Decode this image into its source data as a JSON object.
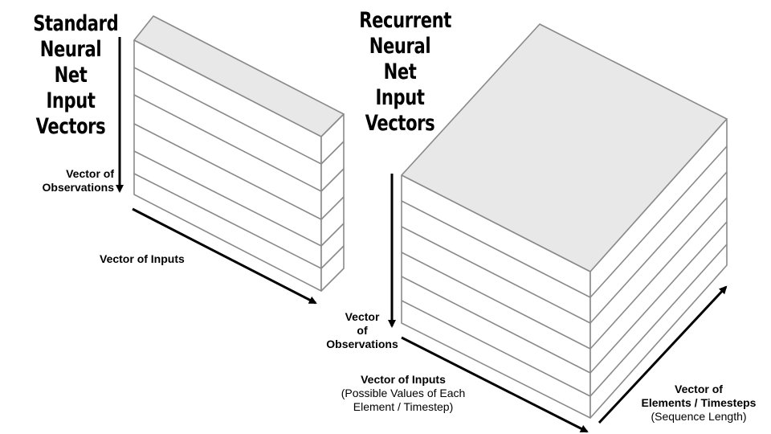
{
  "standard": {
    "title_lines": [
      "Standard",
      "Neural",
      "Net",
      "Input",
      "Vectors"
    ],
    "observations_label": [
      "Vector of",
      "Observations"
    ],
    "inputs_label": "Vector of Inputs"
  },
  "recurrent": {
    "title_lines": [
      "Recurrent",
      "Neural",
      "Net",
      "Input",
      "Vectors"
    ],
    "observations_label": [
      "Vector",
      "of",
      "Observations"
    ],
    "inputs_label": "Vector of Inputs",
    "inputs_sublabel": [
      "(Possible Values of Each",
      "Element / Timestep)"
    ],
    "elements_label": [
      "Vector of",
      "Elements / Timesteps"
    ],
    "elements_sublabel": "(Sequence Length)"
  },
  "colors": {
    "top_face": "#e8e8e8",
    "face": "#ffffff",
    "stroke": "#8a8a8a",
    "arrow": "#000000"
  }
}
